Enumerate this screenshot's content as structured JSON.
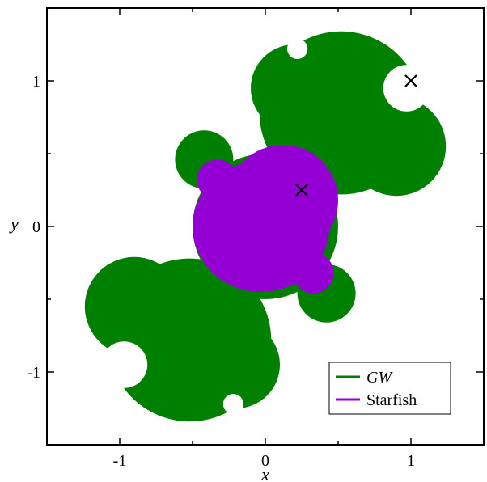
{
  "chart_data": {
    "type": "scatter",
    "title": "",
    "xlabel": "x",
    "ylabel": "y",
    "xlim": [
      -1.5,
      1.5
    ],
    "ylim": [
      -1.5,
      1.5
    ],
    "x_ticks": [
      -1,
      0,
      1
    ],
    "y_ticks": [
      1,
      0,
      -1
    ],
    "x_tick_labels": [
      "-1",
      "0",
      "1"
    ],
    "y_tick_labels": [
      "1",
      "0",
      "-1"
    ],
    "grid": false,
    "legend_position": "bottom-right",
    "series": [
      {
        "name": "GW",
        "color": "#008000",
        "kind": "filled-region",
        "lobes": [
          {
            "cx": 0.52,
            "cy": 0.78,
            "r": 0.56
          },
          {
            "cx": 0.9,
            "cy": 0.55,
            "r": 0.34
          },
          {
            "cx": 0.2,
            "cy": 0.95,
            "r": 0.3
          },
          {
            "cx": -0.52,
            "cy": -0.78,
            "r": 0.56
          },
          {
            "cx": -0.9,
            "cy": -0.55,
            "r": 0.34
          },
          {
            "cx": -0.2,
            "cy": -0.95,
            "r": 0.3
          },
          {
            "cx": -0.42,
            "cy": 0.46,
            "r": 0.2
          },
          {
            "cx": 0.42,
            "cy": -0.46,
            "r": 0.2
          },
          {
            "cx": 0.0,
            "cy": 0.0,
            "r": 0.5
          }
        ],
        "holes": [
          {
            "cx": 0.97,
            "cy": 0.95,
            "r": 0.16
          },
          {
            "cx": -0.97,
            "cy": -0.95,
            "r": 0.16
          },
          {
            "cx": 1.2,
            "cy": 0.22,
            "r": 0.07
          },
          {
            "cx": -1.2,
            "cy": -0.22,
            "r": 0.07
          },
          {
            "cx": 0.22,
            "cy": 1.22,
            "r": 0.07
          },
          {
            "cx": -0.22,
            "cy": -1.22,
            "r": 0.07
          },
          {
            "cx": 1.3,
            "cy": 0.55,
            "r": 0.04
          },
          {
            "cx": -1.3,
            "cy": -0.55,
            "r": 0.04
          }
        ]
      },
      {
        "name": "Starfish",
        "color": "#9400D3",
        "kind": "filled-region",
        "lobes": [
          {
            "cx": -0.03,
            "cy": 0.0,
            "r": 0.47,
            "rx": 0.47,
            "ry": 0.45
          },
          {
            "cx": 0.12,
            "cy": 0.18,
            "r": 0.38
          },
          {
            "cx": -0.33,
            "cy": 0.32,
            "r": 0.14
          },
          {
            "cx": 0.33,
            "cy": -0.32,
            "r": 0.14
          }
        ],
        "holes": []
      }
    ],
    "markers": [
      {
        "label": "×",
        "x": 1.0,
        "y": 1.0
      },
      {
        "label": "×",
        "x": 0.25,
        "y": 0.25
      }
    ]
  }
}
